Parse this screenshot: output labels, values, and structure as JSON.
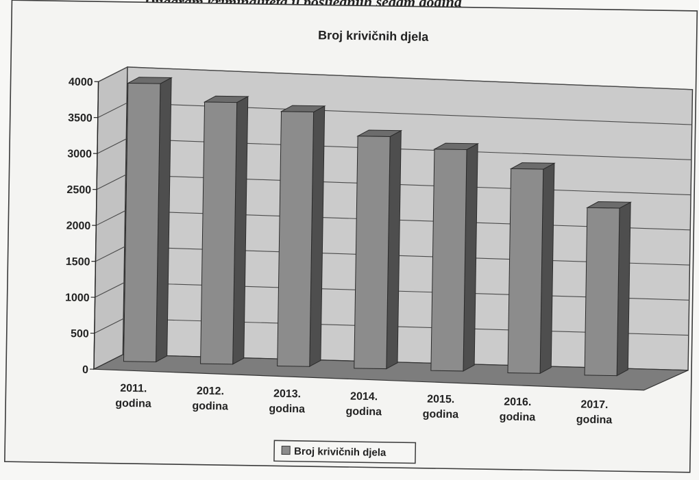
{
  "page_header": "Dijagram kriminaliteta u posljednjih sedam godina",
  "chart_data": {
    "type": "bar",
    "style": "3d-column",
    "title": "Broj krivičnih djela",
    "categories": [
      "2011. godina",
      "2012. godina",
      "2013. godina",
      "2014. godina",
      "2015. godina",
      "2016. godina",
      "2017. godina"
    ],
    "category_lines": [
      [
        "2011.",
        "godina"
      ],
      [
        "2012.",
        "godina"
      ],
      [
        "2013.",
        "godina"
      ],
      [
        "2014.",
        "godina"
      ],
      [
        "2015.",
        "godina"
      ],
      [
        "2016.",
        "godina"
      ],
      [
        "2017.",
        "godina"
      ]
    ],
    "series": [
      {
        "name": "Broj krivičnih djela",
        "values": [
          3870,
          3640,
          3540,
          3230,
          3080,
          2840,
          2330
        ]
      }
    ],
    "yticks": [
      0,
      500,
      1000,
      1500,
      2000,
      2500,
      3000,
      3500,
      4000
    ],
    "ylim": [
      0,
      4000
    ],
    "grid": true,
    "legend_position": "bottom-center",
    "colors": {
      "bar_front": "#8c8c8c",
      "bar_side": "#4e4e4e",
      "bar_top": "#6c6c6c",
      "back_wall": "#cbcbcb",
      "side_wall": "#c2c2c2",
      "floor": "#7d7d7d",
      "grid": "#4a4a4a",
      "frame": "#333333"
    }
  }
}
